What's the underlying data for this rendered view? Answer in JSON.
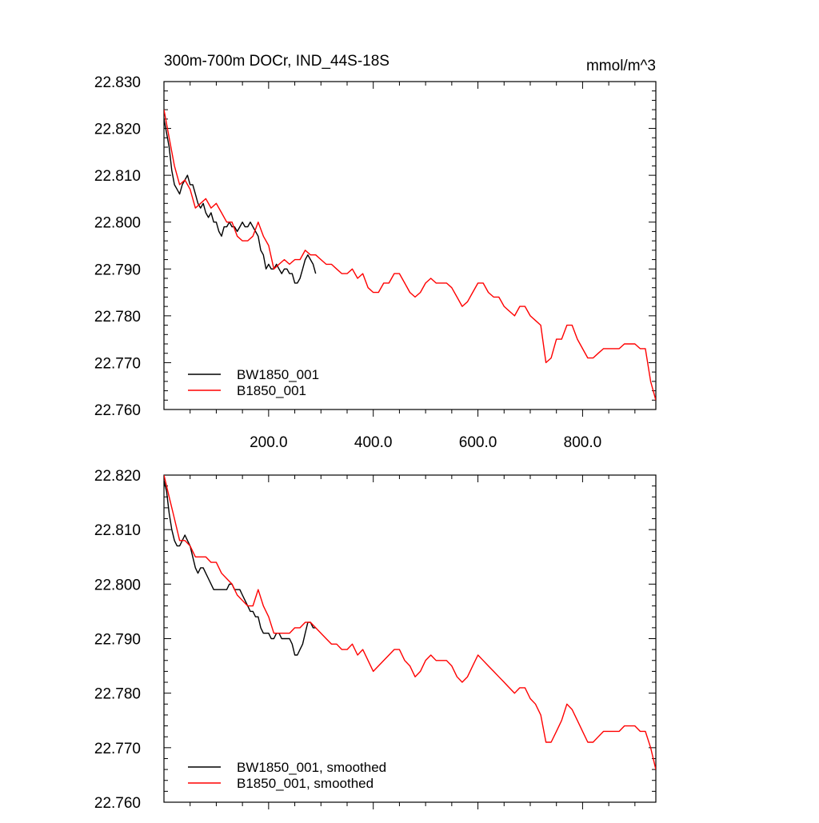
{
  "chart_data": [
    {
      "type": "line",
      "title": "300m-700m DOCr, IND_44S-18S",
      "units": "mmol/m^3",
      "xlim": [
        0,
        940
      ],
      "ylim": [
        22.76,
        22.83
      ],
      "x_ticks": [
        200,
        400,
        600,
        800
      ],
      "x_tick_labels": [
        "200.0",
        "400.0",
        "600.0",
        "800.0"
      ],
      "y_ticks": [
        22.76,
        22.77,
        22.78,
        22.79,
        22.8,
        22.81,
        22.82,
        22.83
      ],
      "y_tick_labels": [
        "22.760",
        "22.770",
        "22.780",
        "22.790",
        "22.800",
        "22.810",
        "22.820",
        "22.830"
      ],
      "legend_position": "bottom-left",
      "series": [
        {
          "name": "BW1850_001",
          "color": "#000000",
          "x": [
            0,
            5,
            10,
            15,
            20,
            25,
            30,
            35,
            40,
            45,
            50,
            55,
            60,
            65,
            70,
            75,
            80,
            85,
            90,
            95,
            100,
            105,
            110,
            115,
            120,
            125,
            130,
            135,
            140,
            145,
            150,
            155,
            160,
            165,
            170,
            175,
            180,
            185,
            190,
            195,
            200,
            205,
            210,
            215,
            220,
            225,
            230,
            235,
            240,
            245,
            250,
            255,
            260,
            265,
            270,
            275,
            280,
            285,
            290
          ],
          "y": [
            22.822,
            22.819,
            22.816,
            22.811,
            22.808,
            22.807,
            22.806,
            22.808,
            22.809,
            22.81,
            22.808,
            22.808,
            22.806,
            22.804,
            22.803,
            22.804,
            22.802,
            22.801,
            22.802,
            22.8,
            22.8,
            22.798,
            22.797,
            22.799,
            22.799,
            22.8,
            22.799,
            22.799,
            22.798,
            22.799,
            22.8,
            22.799,
            22.799,
            22.8,
            22.799,
            22.798,
            22.797,
            22.794,
            22.793,
            22.79,
            22.791,
            22.79,
            22.79,
            22.791,
            22.79,
            22.789,
            22.79,
            22.79,
            22.789,
            22.789,
            22.787,
            22.787,
            22.788,
            22.79,
            22.792,
            22.793,
            22.792,
            22.791,
            22.789
          ]
        },
        {
          "name": "B1850_001",
          "color": "#ff0000",
          "x": [
            0,
            10,
            20,
            30,
            40,
            50,
            60,
            70,
            80,
            90,
            100,
            110,
            120,
            130,
            140,
            150,
            160,
            170,
            180,
            190,
            200,
            210,
            220,
            230,
            240,
            250,
            260,
            270,
            280,
            290,
            300,
            310,
            320,
            330,
            340,
            350,
            360,
            370,
            380,
            390,
            400,
            410,
            420,
            430,
            440,
            450,
            460,
            470,
            480,
            490,
            500,
            510,
            520,
            530,
            540,
            550,
            560,
            570,
            580,
            590,
            600,
            610,
            620,
            630,
            640,
            650,
            660,
            670,
            680,
            690,
            700,
            710,
            720,
            730,
            740,
            750,
            760,
            770,
            780,
            790,
            800,
            810,
            820,
            830,
            840,
            850,
            860,
            870,
            880,
            890,
            900,
            910,
            920,
            930,
            940
          ],
          "y": [
            22.824,
            22.818,
            22.812,
            22.808,
            22.809,
            22.807,
            22.803,
            22.804,
            22.805,
            22.803,
            22.804,
            22.802,
            22.8,
            22.8,
            22.797,
            22.796,
            22.796,
            22.797,
            22.8,
            22.797,
            22.795,
            22.79,
            22.791,
            22.792,
            22.791,
            22.792,
            22.792,
            22.794,
            22.793,
            22.793,
            22.792,
            22.791,
            22.791,
            22.79,
            22.789,
            22.789,
            22.79,
            22.788,
            22.789,
            22.786,
            22.785,
            22.785,
            22.787,
            22.787,
            22.789,
            22.789,
            22.787,
            22.785,
            22.784,
            22.785,
            22.787,
            22.788,
            22.787,
            22.787,
            22.787,
            22.786,
            22.784,
            22.782,
            22.783,
            22.785,
            22.787,
            22.787,
            22.785,
            22.784,
            22.784,
            22.782,
            22.781,
            22.78,
            22.782,
            22.782,
            22.78,
            22.779,
            22.778,
            22.77,
            22.771,
            22.775,
            22.775,
            22.778,
            22.778,
            22.775,
            22.773,
            22.771,
            22.771,
            22.772,
            22.773,
            22.773,
            22.773,
            22.773,
            22.774,
            22.774,
            22.774,
            22.773,
            22.773,
            22.766,
            22.762
          ]
        }
      ]
    },
    {
      "type": "line",
      "xlim": [
        0,
        940
      ],
      "ylim": [
        22.76,
        22.82
      ],
      "x_ticks": [
        200,
        400,
        600,
        800
      ],
      "y_ticks": [
        22.76,
        22.77,
        22.78,
        22.79,
        22.8,
        22.81,
        22.82
      ],
      "y_tick_labels": [
        "22.760",
        "22.770",
        "22.780",
        "22.790",
        "22.800",
        "22.810",
        "22.820"
      ],
      "legend_position": "bottom-left",
      "series": [
        {
          "name": "BW1850_001, smoothed",
          "color": "#000000",
          "x": [
            0,
            5,
            10,
            15,
            20,
            25,
            30,
            35,
            40,
            45,
            50,
            55,
            60,
            65,
            70,
            75,
            80,
            85,
            90,
            95,
            100,
            105,
            110,
            115,
            120,
            125,
            130,
            135,
            140,
            145,
            150,
            155,
            160,
            165,
            170,
            175,
            180,
            185,
            190,
            195,
            200,
            205,
            210,
            215,
            220,
            225,
            230,
            235,
            240,
            245,
            250,
            255,
            260,
            265,
            270,
            275,
            280,
            285,
            290
          ],
          "y": [
            22.819,
            22.817,
            22.813,
            22.81,
            22.808,
            22.807,
            22.807,
            22.808,
            22.809,
            22.808,
            22.807,
            22.805,
            22.803,
            22.802,
            22.803,
            22.803,
            22.802,
            22.801,
            22.8,
            22.799,
            22.799,
            22.799,
            22.799,
            22.799,
            22.799,
            22.8,
            22.8,
            22.799,
            22.799,
            22.799,
            22.798,
            22.797,
            22.796,
            22.795,
            22.795,
            22.794,
            22.794,
            22.792,
            22.791,
            22.791,
            22.791,
            22.79,
            22.79,
            22.791,
            22.791,
            22.79,
            22.79,
            22.79,
            22.79,
            22.789,
            22.787,
            22.787,
            22.788,
            22.789,
            22.791,
            22.793,
            22.793,
            22.792,
            22.792
          ]
        },
        {
          "name": "B1850_001, smoothed",
          "color": "#ff0000",
          "x": [
            0,
            10,
            20,
            30,
            40,
            50,
            60,
            70,
            80,
            90,
            100,
            110,
            120,
            130,
            140,
            150,
            160,
            170,
            180,
            190,
            200,
            210,
            220,
            230,
            240,
            250,
            260,
            270,
            280,
            290,
            300,
            310,
            320,
            330,
            340,
            350,
            360,
            370,
            380,
            390,
            400,
            410,
            420,
            430,
            440,
            450,
            460,
            470,
            480,
            490,
            500,
            510,
            520,
            530,
            540,
            550,
            560,
            570,
            580,
            590,
            600,
            610,
            620,
            630,
            640,
            650,
            660,
            670,
            680,
            690,
            700,
            710,
            720,
            730,
            740,
            750,
            760,
            770,
            780,
            790,
            800,
            810,
            820,
            830,
            840,
            850,
            860,
            870,
            880,
            890,
            900,
            910,
            920,
            930,
            940
          ],
          "y": [
            22.82,
            22.816,
            22.812,
            22.808,
            22.808,
            22.807,
            22.805,
            22.805,
            22.805,
            22.804,
            22.804,
            22.802,
            22.801,
            22.8,
            22.798,
            22.797,
            22.796,
            22.796,
            22.799,
            22.796,
            22.794,
            22.791,
            22.791,
            22.791,
            22.791,
            22.792,
            22.792,
            22.793,
            22.793,
            22.792,
            22.791,
            22.79,
            22.789,
            22.789,
            22.788,
            22.788,
            22.789,
            22.787,
            22.788,
            22.786,
            22.784,
            22.785,
            22.786,
            22.787,
            22.788,
            22.788,
            22.786,
            22.785,
            22.783,
            22.784,
            22.786,
            22.787,
            22.786,
            22.786,
            22.786,
            22.785,
            22.783,
            22.782,
            22.783,
            22.785,
            22.787,
            22.786,
            22.785,
            22.784,
            22.783,
            22.782,
            22.781,
            22.78,
            22.781,
            22.781,
            22.779,
            22.778,
            22.776,
            22.771,
            22.771,
            22.773,
            22.775,
            22.778,
            22.777,
            22.775,
            22.773,
            22.771,
            22.771,
            22.772,
            22.773,
            22.773,
            22.773,
            22.773,
            22.774,
            22.774,
            22.774,
            22.773,
            22.773,
            22.77,
            22.766
          ]
        }
      ]
    }
  ]
}
